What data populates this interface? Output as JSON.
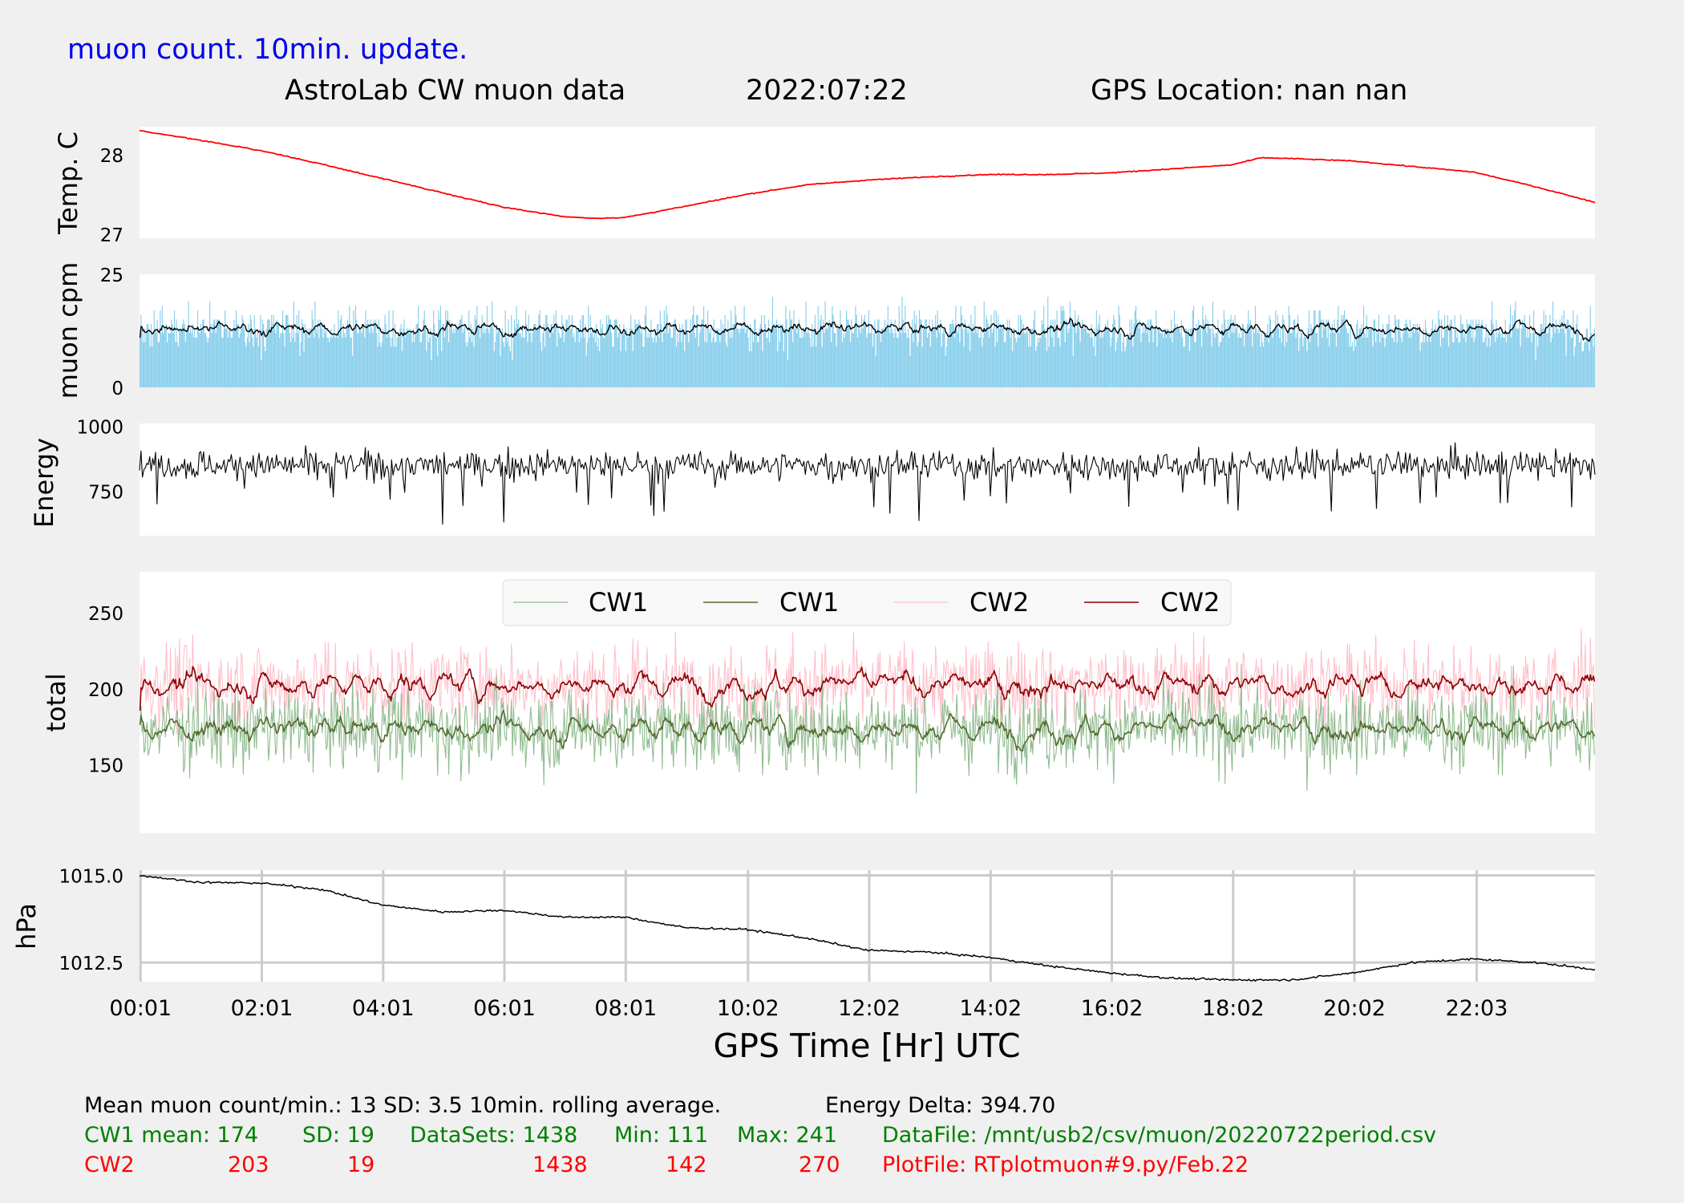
{
  "header": {
    "note": "muon count.  10min. update.",
    "title": "AstroLab CW muon data",
    "date": "2022:07:22",
    "location": "GPS Location: nan   nan"
  },
  "colors": {
    "background": "#f0f0f0",
    "panel": "#ffffff",
    "temp": "#ff0000",
    "muon_bars": "#87ceeb",
    "black": "#000000",
    "cw1_raw": "#8fbc8f",
    "cw1_avg": "#556b2f",
    "cw2_raw": "#ffc0cb",
    "cw2_avg": "#8b0000",
    "note": "#0000ee",
    "green_text": "#008000",
    "red_text": "#ff0000",
    "grid": "#cccccc"
  },
  "chart_data": [
    {
      "id": "temp",
      "type": "line",
      "ylabel": "Temp. C",
      "ylim": [
        26.95,
        28.35
      ],
      "yticks": [
        "28",
        "27"
      ],
      "series": [
        {
          "x": [
            0,
            1,
            2,
            3,
            4,
            5,
            6,
            7,
            7.5,
            8,
            9,
            10,
            11,
            12,
            13,
            14,
            15,
            16,
            17,
            18,
            18.5,
            19,
            20,
            21,
            22,
            23,
            24
          ],
          "values": [
            28.3,
            28.18,
            28.05,
            27.88,
            27.7,
            27.52,
            27.34,
            27.22,
            27.2,
            27.21,
            27.35,
            27.5,
            27.62,
            27.68,
            27.72,
            27.75,
            27.75,
            27.77,
            27.82,
            27.87,
            27.96,
            27.95,
            27.92,
            27.85,
            27.78,
            27.6,
            27.4
          ]
        }
      ]
    },
    {
      "id": "muon",
      "type": "bar",
      "ylabel": "muon cpm",
      "ylim": [
        0,
        25
      ],
      "yticks": [
        "25",
        "0"
      ],
      "series": [
        {
          "summary": {
            "mean": 13,
            "sd": 3.5
          }
        },
        {
          "summary": {
            "mean": 13,
            "rolling": 10
          }
        }
      ]
    },
    {
      "id": "energy",
      "type": "line",
      "ylabel": "Energy",
      "ylim": [
        580,
        1010
      ],
      "yticks": [
        "1000",
        "750"
      ],
      "series": [
        {
          "summary": {
            "mean": 850,
            "min": 580,
            "max": 960
          }
        }
      ]
    },
    {
      "id": "total",
      "type": "line",
      "ylabel": "total",
      "ylim": [
        105,
        277
      ],
      "yticks": [
        "250",
        "200",
        "150"
      ],
      "legend": "upper-center",
      "series": [
        {
          "name": "CW1",
          "summary": {
            "mean": 174,
            "sd": 19,
            "min": 111,
            "max": 241
          }
        },
        {
          "name": "CW1",
          "summary": {
            "mean": 174,
            "rolling": 10
          }
        },
        {
          "name": "CW2",
          "summary": {
            "mean": 203,
            "sd": 19,
            "min": 142,
            "max": 270
          }
        },
        {
          "name": "CW2",
          "summary": {
            "mean": 203,
            "rolling": 10
          }
        }
      ]
    },
    {
      "id": "pressure",
      "type": "line",
      "ylabel": "hPa",
      "ylim": [
        1011.95,
        1015.15
      ],
      "yticks": [
        "1015.0",
        "1012.5"
      ],
      "grid": true,
      "series": [
        {
          "x": [
            0,
            1,
            2,
            3,
            4,
            5,
            6,
            7,
            8,
            9,
            10,
            11,
            12,
            13,
            14,
            15,
            16,
            17,
            18,
            19,
            20,
            21,
            22,
            23,
            24
          ],
          "values": [
            1015.0,
            1014.8,
            1014.78,
            1014.6,
            1014.15,
            1013.95,
            1014.0,
            1013.8,
            1013.8,
            1013.5,
            1013.45,
            1013.2,
            1012.85,
            1012.8,
            1012.65,
            1012.4,
            1012.2,
            1012.05,
            1012.0,
            1012.0,
            1012.2,
            1012.5,
            1012.6,
            1012.5,
            1012.3
          ]
        }
      ]
    }
  ],
  "xaxis": {
    "label": "GPS Time  [Hr] UTC",
    "range": [
      0,
      24
    ],
    "ticks": [
      {
        "x": 0.0167,
        "label": "00:01"
      },
      {
        "x": 2.0167,
        "label": "02:01"
      },
      {
        "x": 4.0167,
        "label": "04:01"
      },
      {
        "x": 6.0167,
        "label": "06:01"
      },
      {
        "x": 8.0167,
        "label": "08:01"
      },
      {
        "x": 10.0333,
        "label": "10:02"
      },
      {
        "x": 12.0333,
        "label": "12:02"
      },
      {
        "x": 14.0333,
        "label": "14:02"
      },
      {
        "x": 16.0333,
        "label": "16:02"
      },
      {
        "x": 18.0333,
        "label": "18:02"
      },
      {
        "x": 20.0333,
        "label": "20:02"
      },
      {
        "x": 22.05,
        "label": "22:03"
      }
    ]
  },
  "footer": {
    "line1": {
      "a": "Mean muon count/min.: 13  SD: 3.5   10min. rolling average.",
      "b": "Energy Delta:  394.70"
    },
    "cw1": {
      "name": "CW1 mean: 174",
      "sd": "SD: 19",
      "datasets": "DataSets: 1438",
      "min": "Min: 111",
      "max": "Max: 241",
      "file": "DataFile: /mnt/usb2/csv/muon/20220722period.csv"
    },
    "cw2": {
      "name": "CW2",
      "mean": "203",
      "sd": "19",
      "datasets": "1438",
      "min": "142",
      "max": "270",
      "file": "PlotFile: RTplotmuon#9.py/Feb.22"
    }
  }
}
